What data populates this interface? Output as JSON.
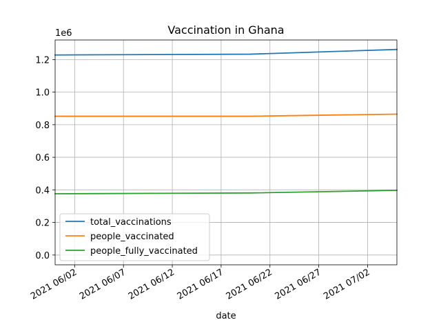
{
  "chart_data": {
    "type": "line",
    "title": "Vaccination in Ghana",
    "xlabel": "date",
    "ylabel": "",
    "y_offset_label": "1e6",
    "xlim": [
      "2021-05-31",
      "2021-07-05"
    ],
    "ylim": [
      -60000,
      1320000
    ],
    "x_ticks": [
      {
        "date": "2021-06-02",
        "label": "2021 06/02"
      },
      {
        "date": "2021-06-07",
        "label": "2021 06/07"
      },
      {
        "date": "2021-06-12",
        "label": "2021 06/12"
      },
      {
        "date": "2021-06-17",
        "label": "2021 06/17"
      },
      {
        "date": "2021-06-22",
        "label": "2021 06/22"
      },
      {
        "date": "2021-06-27",
        "label": "2021 06/27"
      },
      {
        "date": "2021-07-02",
        "label": "2021 07/02"
      }
    ],
    "y_ticks": [
      {
        "value": 0,
        "label": "0.0"
      },
      {
        "value": 200000,
        "label": "0.2"
      },
      {
        "value": 400000,
        "label": "0.4"
      },
      {
        "value": 600000,
        "label": "0.6"
      },
      {
        "value": 800000,
        "label": "0.8"
      },
      {
        "value": 1000000,
        "label": "1.0"
      },
      {
        "value": 1200000,
        "label": "1.2"
      }
    ],
    "grid": true,
    "legend_position": "lower-left",
    "series": [
      {
        "name": "total_vaccinations",
        "color": "#1f77b4",
        "points": [
          {
            "x": "2021-05-31",
            "y": 1228000
          },
          {
            "x": "2021-06-20",
            "y": 1233000
          },
          {
            "x": "2021-07-05",
            "y": 1262000
          }
        ]
      },
      {
        "name": "people_vaccinated",
        "color": "#ff7f0e",
        "points": [
          {
            "x": "2021-05-31",
            "y": 852000
          },
          {
            "x": "2021-06-20",
            "y": 852000
          },
          {
            "x": "2021-07-05",
            "y": 865000
          }
        ]
      },
      {
        "name": "people_fully_vaccinated",
        "color": "#2ca02c",
        "points": [
          {
            "x": "2021-05-31",
            "y": 376000
          },
          {
            "x": "2021-06-20",
            "y": 381000
          },
          {
            "x": "2021-07-05",
            "y": 397000
          }
        ]
      }
    ]
  }
}
